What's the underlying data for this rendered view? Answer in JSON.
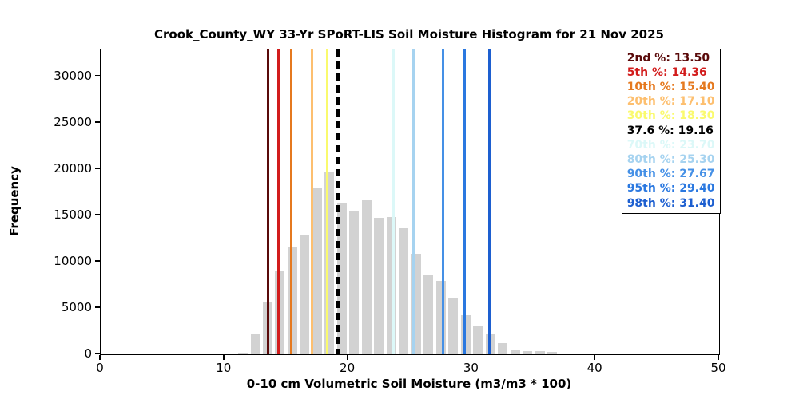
{
  "figure": {
    "title": "Crook_County_WY 33-Yr SPoRT-LIS Soil Moisture Histogram for 21 Nov 2025",
    "xlabel": "0-10 cm Volumetric Soil Moisture (m3/m3 * 100)",
    "ylabel": "Frequency"
  },
  "chart_data": {
    "type": "bar",
    "title": "Crook_County_WY 33-Yr SPoRT-LIS Soil Moisture Histogram for 21 Nov 2025",
    "xlabel": "0-10 cm Volumetric Soil Moisture (m3/m3 * 100)",
    "ylabel": "Frequency",
    "xlim": [
      0,
      50
    ],
    "ylim": [
      0,
      32900
    ],
    "xticks": [
      0,
      10,
      20,
      30,
      40,
      50
    ],
    "yticks": [
      0,
      5000,
      10000,
      15000,
      20000,
      25000,
      30000
    ],
    "grid": false,
    "legend_position": "upper right",
    "bar_color": "#d2d2d2",
    "bin_width": 1,
    "bar_relative_width": 0.78,
    "bin_centers": [
      11.5,
      12.5,
      13.5,
      14.5,
      15.5,
      16.5,
      17.5,
      18.5,
      19.5,
      20.5,
      21.5,
      22.5,
      23.5,
      24.5,
      25.5,
      26.5,
      27.5,
      28.5,
      29.5,
      30.5,
      31.5,
      32.5,
      33.5,
      34.5,
      35.5,
      36.5
    ],
    "frequencies": [
      150,
      2250,
      5700,
      9000,
      11550,
      12900,
      17950,
      19750,
      16300,
      15500,
      16600,
      14750,
      14850,
      13650,
      10850,
      8600,
      7950,
      6150,
      4200,
      3030,
      2250,
      1200,
      550,
      380,
      330,
      220
    ],
    "percentile_lines": [
      {
        "label": "2nd %",
        "value": 13.5,
        "display": "13.50",
        "color": "#5a0a0a",
        "style": "solid"
      },
      {
        "label": "5th %",
        "value": 14.36,
        "display": "14.36",
        "color": "#d21c1c",
        "style": "solid"
      },
      {
        "label": "10th %",
        "value": 15.4,
        "display": "15.40",
        "color": "#e5791f",
        "style": "solid"
      },
      {
        "label": "20th %",
        "value": 17.1,
        "display": "17.10",
        "color": "#fdbf6f",
        "style": "solid"
      },
      {
        "label": "30th %",
        "value": 18.3,
        "display": "18.30",
        "color": "#fafa6e",
        "style": "solid"
      },
      {
        "label": "37.6 %",
        "value": 19.16,
        "display": "19.16",
        "color": "#000000",
        "style": "dashed"
      },
      {
        "label": "70th %",
        "value": 23.7,
        "display": "23.70",
        "color": "#dcf8f8",
        "style": "solid"
      },
      {
        "label": "80th %",
        "value": 25.3,
        "display": "25.30",
        "color": "#a6d3f0",
        "style": "solid"
      },
      {
        "label": "90th %",
        "value": 27.67,
        "display": "27.67",
        "color": "#4590e6",
        "style": "solid"
      },
      {
        "label": "95th %",
        "value": 29.4,
        "display": "29.40",
        "color": "#2a78e0",
        "style": "solid"
      },
      {
        "label": "98th %",
        "value": 31.4,
        "display": "31.40",
        "color": "#1d5fd0",
        "style": "solid"
      }
    ]
  }
}
